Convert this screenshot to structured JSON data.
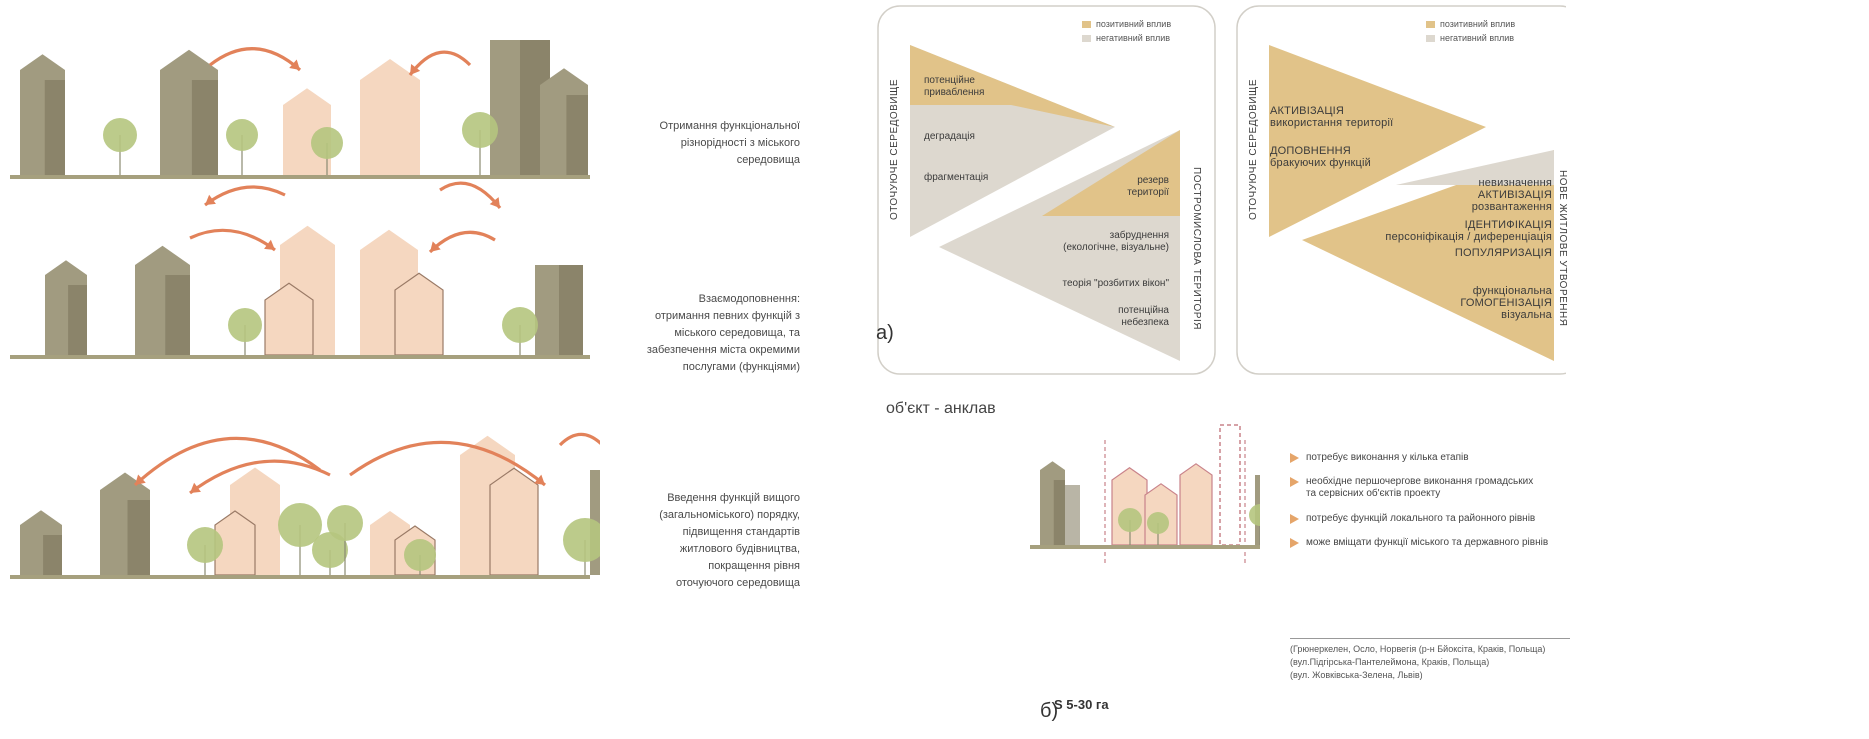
{
  "colors": {
    "building_dark": "#a19b80",
    "building_dark_shade": "#8b846a",
    "building_light": "#f5d7c0",
    "building_light_edge": "#9a7a66",
    "tree": "#b5c57e",
    "arrow": "#e2825a",
    "ground": "#a6a07e",
    "positive": "#e1c389",
    "negative": "#ddd8cf"
  },
  "left_diagrams": [
    {
      "caption": "Отримання функціональної\nрізнорідності з міського\nсередовища"
    },
    {
      "caption": "Взаємодоповнення:\nотримання певних функцій з\nміського середовища, та\nзабезпечення міста окремими\nпослугами (функціями)"
    },
    {
      "caption": "Введення функцій вищого\n(загальноміського) порядку,\nпідвищення стандартів\nжитлового будівництва,\nпокращення рівня\nоточуючого середовища"
    }
  ],
  "panel_a": {
    "letter": "а)",
    "left_box": {
      "legend": [
        {
          "label": "позитивний вплив",
          "color": "positive"
        },
        {
          "label": "негативний вплив",
          "color": "negative"
        }
      ],
      "side_left": "ОТОЧУЮЧЕ СЕРЕДОВИЩЕ",
      "side_right": "ПОСТРОМИСЛОВА ТЕРИТОРІЯ",
      "upper_labels": [
        "потенційне\nприваблення",
        "деградація",
        "фрагментація"
      ],
      "lower_labels": [
        "резерв\nтериторії",
        "забруднення\n(екологічне, візуальне)",
        "теорія \"розбитих вікон\"",
        "потенційна\nнебезпека"
      ]
    },
    "right_box": {
      "legend": [
        {
          "label": "позитивний вплив",
          "color": "positive"
        },
        {
          "label": "негативний вплив",
          "color": "negative"
        }
      ],
      "side_left": "ОТОЧУЮЧЕ СЕРЕДОВИЩЕ",
      "side_right": "НОВЕ ЖИТЛОВЕ УТВОРЕННЯ",
      "upper_labels": [
        "АКТИВІЗАЦІЯ\nвикористання території",
        "ДОПОВНЕННЯ\nбракуючих функцій"
      ],
      "lower_labels": [
        "невизначення\nАКТИВІЗАЦІЯ\nрозвантаження",
        "ІДЕНТИФІКАЦІЯ\nперсоніфікація / диференціація",
        "ПОПУЛЯРИЗАЦІЯ",
        "функціональна\nГОМОГЕНІЗАЦІЯ\nвізуальна"
      ]
    }
  },
  "panel_b": {
    "letter": "б)",
    "title": "об'єкт - анклав",
    "area_label": "S 5-30 га",
    "bullets": [
      "потребує виконання у кілька етапів",
      "необхідне першочергове виконання громадських\nта сервісних об'єктів проекту",
      "потребує функцій локального та районного рівнів",
      "може вміщати функції міського та державного рівнів"
    ],
    "reference": "(Грюнеркелен, Осло, Норвегія (р-н Бйоксіта, Краків, Польща)\n(вул.Підгірська-Пантелеймона, Краків, Польща)\n(вул. Жовківська-Зелена, Львів)"
  }
}
